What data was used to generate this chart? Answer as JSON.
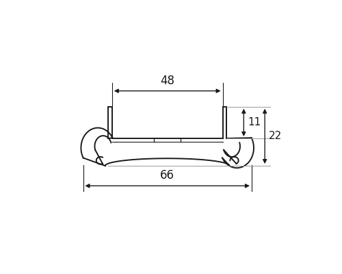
{
  "bg_color": "#ffffff",
  "line_color": "#1a1a1a",
  "figsize": [
    5.0,
    4.0
  ],
  "dpi": 100,
  "dim_48_label": "48",
  "dim_66_label": "66",
  "dim_11_label": "11",
  "dim_22_label": "22"
}
